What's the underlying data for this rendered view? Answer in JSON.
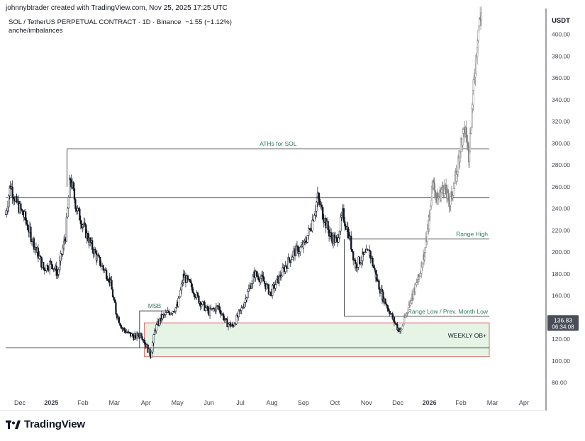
{
  "header": {
    "caption": "johnnybtrader created with TradingView.com, Nov 25, 2025 17:25 UTC"
  },
  "legend": {
    "symbol": "SOL / TetherUS PERPETUAL CONTRACT · 1D · Binance",
    "change": "−1.55 (−1.12%)",
    "indicator": "anche/imbalances"
  },
  "brand": {
    "name": "TradingView",
    "logo_icon": "tradingview-logo-icon"
  },
  "colors": {
    "candle": "#131722",
    "projection": "#808080",
    "zone_fill": "#e6f4e6",
    "zone_border": "#d9534f",
    "label_green": "#2e7d5b",
    "price_badge": "#4a4e59"
  },
  "chart_data": {
    "type": "candlestick",
    "y_axis": {
      "unit_label": "USDT",
      "ticks": [
        "80.00",
        "100.00",
        "120.00",
        "140.00",
        "160.00",
        "180.00",
        "200.00",
        "220.00",
        "240.00",
        "260.00",
        "280.00",
        "300.00",
        "320.00",
        "340.00",
        "360.00",
        "380.00",
        "400.00"
      ],
      "tick_values": [
        80,
        100,
        120,
        140,
        160,
        180,
        200,
        220,
        240,
        260,
        280,
        300,
        320,
        340,
        360,
        380,
        400
      ],
      "range": [
        70,
        420
      ]
    },
    "x_axis": {
      "ticks": [
        {
          "label": "Dec",
          "t": 0
        },
        {
          "label": "2025",
          "t": 1,
          "bold": true
        },
        {
          "label": "Feb",
          "t": 2
        },
        {
          "label": "Mar",
          "t": 3
        },
        {
          "label": "Apr",
          "t": 4
        },
        {
          "label": "May",
          "t": 5
        },
        {
          "label": "Jun",
          "t": 6
        },
        {
          "label": "Jul",
          "t": 7
        },
        {
          "label": "Aug",
          "t": 8
        },
        {
          "label": "Sep",
          "t": 9
        },
        {
          "label": "Oct",
          "t": 10
        },
        {
          "label": "Nov",
          "t": 11
        },
        {
          "label": "Dec",
          "t": 12
        },
        {
          "label": "2026",
          "t": 13,
          "bold": true
        },
        {
          "label": "Feb",
          "t": 14
        },
        {
          "label": "Mar",
          "t": 15
        },
        {
          "label": "Apr",
          "t": 16
        }
      ],
      "range": [
        -0.45,
        16.7
      ]
    },
    "price_badge": {
      "value": "136.83",
      "timer": "06:34:08",
      "price": 136.83
    },
    "series_actual": [
      [
        -0.45,
        235
      ],
      [
        -0.3,
        262
      ],
      [
        -0.1,
        245
      ],
      [
        0.15,
        232
      ],
      [
        0.35,
        215
      ],
      [
        0.55,
        200
      ],
      [
        0.75,
        185
      ],
      [
        1.0,
        190
      ],
      [
        1.2,
        180
      ],
      [
        1.45,
        215
      ],
      [
        1.6,
        268
      ],
      [
        1.8,
        240
      ],
      [
        2.0,
        225
      ],
      [
        2.2,
        210
      ],
      [
        2.45,
        195
      ],
      [
        2.65,
        185
      ],
      [
        2.85,
        175
      ],
      [
        3.05,
        145
      ],
      [
        3.25,
        130
      ],
      [
        3.45,
        125
      ],
      [
        3.65,
        122
      ],
      [
        3.85,
        125
      ],
      [
        4.0,
        115
      ],
      [
        4.15,
        105
      ],
      [
        4.3,
        130
      ],
      [
        4.5,
        140
      ],
      [
        4.75,
        145
      ],
      [
        5.0,
        150
      ],
      [
        5.2,
        178
      ],
      [
        5.45,
        168
      ],
      [
        5.7,
        155
      ],
      [
        6.0,
        145
      ],
      [
        6.3,
        150
      ],
      [
        6.55,
        135
      ],
      [
        6.75,
        132
      ],
      [
        7.0,
        145
      ],
      [
        7.2,
        160
      ],
      [
        7.45,
        180
      ],
      [
        7.7,
        175
      ],
      [
        7.95,
        162
      ],
      [
        8.2,
        175
      ],
      [
        8.45,
        188
      ],
      [
        8.7,
        200
      ],
      [
        9.0,
        205
      ],
      [
        9.25,
        225
      ],
      [
        9.45,
        250
      ],
      [
        9.65,
        232
      ],
      [
        9.85,
        215
      ],
      [
        10.05,
        210
      ],
      [
        10.25,
        235
      ],
      [
        10.45,
        215
      ],
      [
        10.65,
        188
      ],
      [
        10.9,
        196
      ],
      [
        11.1,
        200
      ],
      [
        11.3,
        178
      ],
      [
        11.5,
        160
      ],
      [
        11.7,
        148
      ],
      [
        11.85,
        138
      ],
      [
        12.0,
        130
      ],
      [
        12.1,
        128
      ]
    ],
    "series_projection": [
      [
        12.1,
        128
      ],
      [
        12.25,
        142
      ],
      [
        12.45,
        160
      ],
      [
        12.65,
        175
      ],
      [
        12.85,
        200
      ],
      [
        13.0,
        232
      ],
      [
        13.1,
        265
      ],
      [
        13.25,
        248
      ],
      [
        13.45,
        260
      ],
      [
        13.65,
        245
      ],
      [
        13.85,
        270
      ],
      [
        14.0,
        300
      ],
      [
        14.15,
        312
      ],
      [
        14.25,
        290
      ],
      [
        14.4,
        350
      ],
      [
        14.55,
        405
      ],
      [
        14.65,
        420
      ]
    ],
    "levels": [
      {
        "name": "ATHs for SOL",
        "price": 295,
        "x0": 1.5,
        "x1": 14.9,
        "label": "ATHs for SOL",
        "label_pos": "center"
      },
      {
        "name": "upper-range-line",
        "price": 250,
        "x0": -0.45,
        "x1": 14.9,
        "label": ""
      },
      {
        "name": "Range High",
        "price": 212,
        "x0": 10.5,
        "x1": 14.9,
        "label": "Range High",
        "label_pos": "right"
      },
      {
        "name": "Range Low / Prev. Month Low",
        "price": 141,
        "x0": 10.3,
        "x1": 14.9,
        "label": "Range Low / Prev. Month Low",
        "label_pos": "right"
      },
      {
        "name": "MSB",
        "price": 146,
        "x0": 3.8,
        "x1": 4.75,
        "label": "MSB",
        "label_pos": "center"
      },
      {
        "name": "lower-sweep-line",
        "price": 112,
        "x0": -0.45,
        "x1": 14.9,
        "label": ""
      }
    ],
    "zones": [
      {
        "name": "WEEKLY OB",
        "label": "WEEKLY OB+",
        "price_top": 135,
        "price_bottom": 104,
        "x0": 3.95,
        "x1": 14.9
      }
    ]
  }
}
